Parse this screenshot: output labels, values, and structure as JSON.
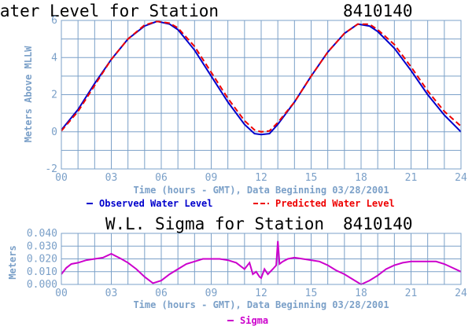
{
  "chart_data": [
    {
      "type": "line",
      "title": "Water Level for Station",
      "station": "8410140",
      "xlabel": "Time (hours - GMT), Data Beginning 03/28/2001",
      "ylabel": "Meters Above MLLW",
      "xlim": [
        0,
        24
      ],
      "ylim": [
        -2,
        6
      ],
      "x_ticks": [
        "00",
        "03",
        "06",
        "09",
        "12",
        "15",
        "18",
        "21",
        "24"
      ],
      "y_ticks": [
        "-2",
        "0",
        "2",
        "4",
        "6"
      ],
      "grid": true,
      "legend_position": "bottom",
      "series": [
        {
          "name": "Observed Water Level",
          "color": "#0000cc",
          "style": "solid",
          "x": [
            0,
            1,
            2,
            3,
            4,
            5,
            5.75,
            6.5,
            7,
            8,
            9,
            10,
            11,
            11.6,
            12,
            12.5,
            13,
            14,
            15,
            16,
            17,
            17.8,
            18.5,
            19,
            20,
            21,
            22,
            23,
            24
          ],
          "y": [
            0.1,
            1.2,
            2.6,
            3.9,
            5.0,
            5.7,
            5.95,
            5.8,
            5.5,
            4.4,
            3.0,
            1.6,
            0.4,
            -0.1,
            -0.15,
            -0.1,
            0.4,
            1.6,
            3.0,
            4.3,
            5.3,
            5.8,
            5.7,
            5.4,
            4.5,
            3.3,
            2.0,
            0.9,
            0.0
          ]
        },
        {
          "name": "Predicted Water Level",
          "color": "#ee0000",
          "style": "dashed",
          "x": [
            0,
            1,
            2,
            3,
            4,
            5,
            5.75,
            6.5,
            7,
            8,
            9,
            10,
            11,
            11.6,
            12,
            12.5,
            13,
            14,
            15,
            16,
            17,
            17.8,
            18.5,
            19,
            20,
            21,
            22,
            23,
            24
          ],
          "y": [
            0.05,
            1.1,
            2.5,
            3.9,
            5.0,
            5.75,
            5.95,
            5.85,
            5.6,
            4.6,
            3.2,
            1.8,
            0.6,
            0.1,
            0.0,
            0.05,
            0.5,
            1.6,
            3.0,
            4.3,
            5.3,
            5.8,
            5.8,
            5.5,
            4.7,
            3.5,
            2.2,
            1.1,
            0.3
          ]
        }
      ]
    },
    {
      "type": "line",
      "title": "W.L. Sigma for Station",
      "station": "8410140",
      "xlabel": "Time (hours - GMT), Data Beginning 03/28/2001",
      "ylabel": "Meters",
      "xlim": [
        0,
        24
      ],
      "ylim": [
        0,
        0.04
      ],
      "x_ticks": [
        "00",
        "03",
        "06",
        "09",
        "12",
        "15",
        "18",
        "21",
        "24"
      ],
      "y_ticks": [
        "0.000",
        "0.010",
        "0.020",
        "0.030",
        "0.040"
      ],
      "grid": true,
      "legend_position": "bottom",
      "series": [
        {
          "name": "Sigma",
          "color": "#cc00cc",
          "style": "solid",
          "x": [
            0,
            0.3,
            0.6,
            1,
            1.5,
            2,
            2.5,
            3,
            3.3,
            3.6,
            4,
            4.5,
            5,
            5.5,
            6,
            6.5,
            7,
            7.5,
            8,
            8.5,
            9,
            9.5,
            10,
            10.5,
            11,
            11.3,
            11.5,
            11.7,
            11.9,
            12,
            12.2,
            12.4,
            12.7,
            12.9,
            13,
            13.1,
            13.3,
            13.6,
            14,
            14.5,
            15,
            15.5,
            16,
            16.5,
            17,
            17.5,
            18,
            18.5,
            19,
            19.5,
            20,
            20.5,
            21,
            21.5,
            22,
            22.5,
            23,
            23.5,
            24
          ],
          "y": [
            0.008,
            0.013,
            0.016,
            0.017,
            0.019,
            0.02,
            0.021,
            0.024,
            0.022,
            0.02,
            0.017,
            0.012,
            0.006,
            0.001,
            0.003,
            0.008,
            0.012,
            0.016,
            0.018,
            0.02,
            0.02,
            0.02,
            0.019,
            0.017,
            0.012,
            0.017,
            0.008,
            0.01,
            0.006,
            0.005,
            0.012,
            0.008,
            0.012,
            0.015,
            0.034,
            0.016,
            0.018,
            0.02,
            0.021,
            0.02,
            0.019,
            0.018,
            0.015,
            0.011,
            0.008,
            0.004,
            0.0,
            0.003,
            0.007,
            0.012,
            0.015,
            0.017,
            0.018,
            0.018,
            0.018,
            0.018,
            0.016,
            0.013,
            0.01
          ]
        }
      ]
    }
  ]
}
